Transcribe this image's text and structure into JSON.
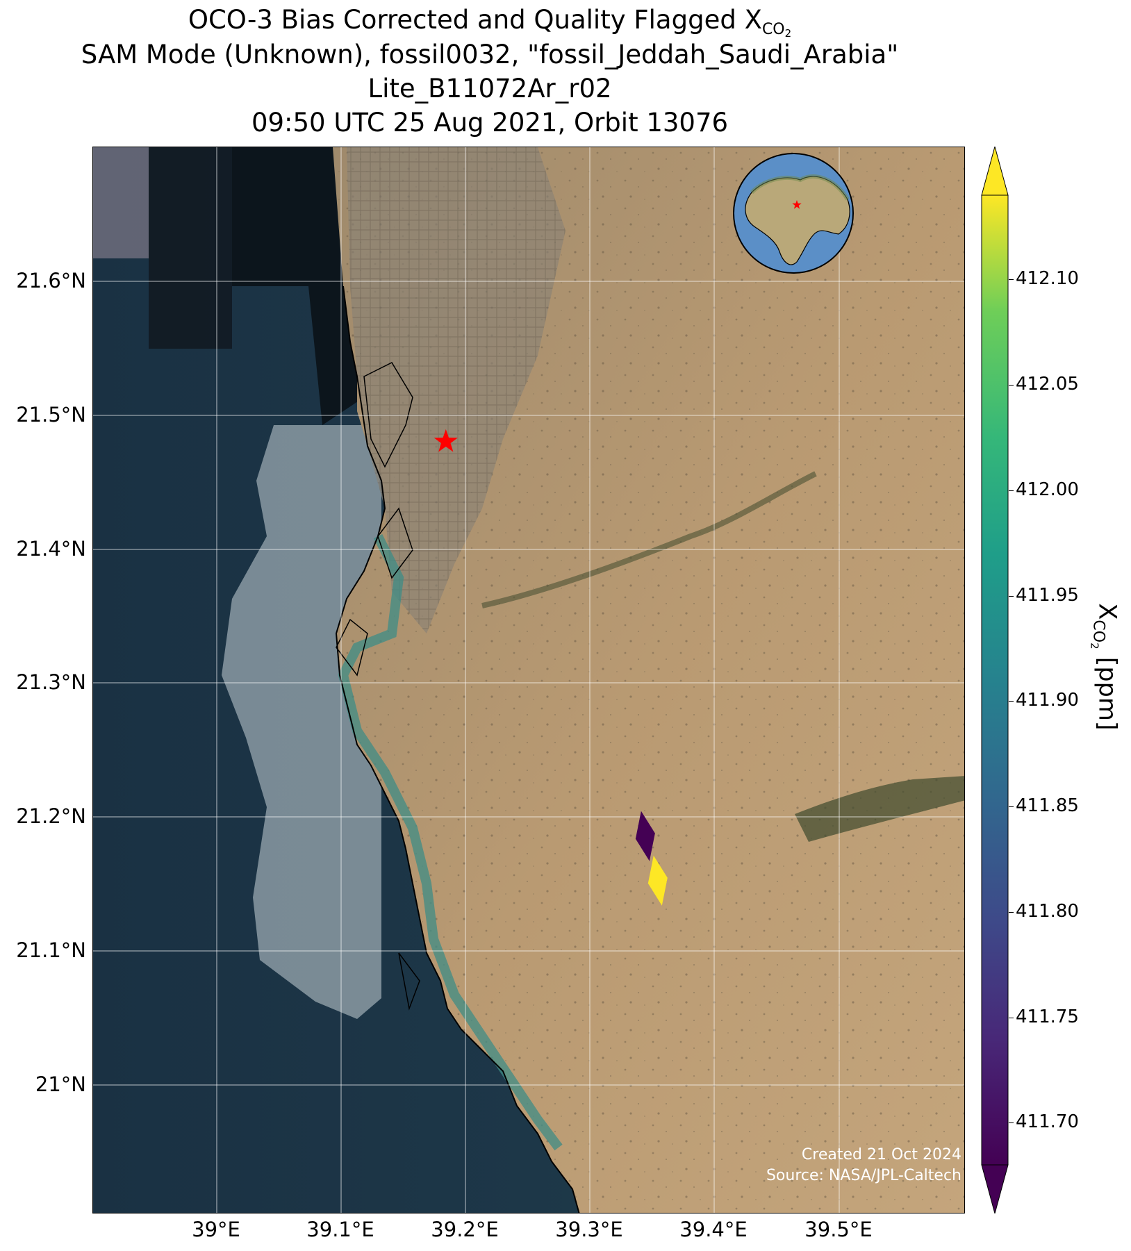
{
  "title": {
    "line1_prefix": "OCO-3 Bias Corrected and Quality Flagged X",
    "line1_sub": "CO",
    "line1_sub2": "2",
    "line2": "SAM Mode (Unknown), fossil0032, \"fossil_Jeddah_Saudi_Arabia\"",
    "line3": "Lite_B11072Ar_r02",
    "line4": "09:50 UTC 25 Aug 2021, Orbit 13076"
  },
  "axes": {
    "lat_labels": [
      "21.6°N",
      "21.5°N",
      "21.4°N",
      "21.3°N",
      "21.2°N",
      "21.1°N",
      "21°N"
    ],
    "lon_labels": [
      "39°E",
      "39.1°E",
      "39.2°E",
      "39.3°E",
      "39.4°E",
      "39.5°E"
    ],
    "lat_range": [
      20.91,
      21.7
    ],
    "lon_range": [
      38.9,
      39.6
    ],
    "grid": true
  },
  "colorbar": {
    "label_prefix": "X",
    "label_sub": "CO",
    "label_sub2": "2",
    "label_suffix": " [ppm]",
    "ticks": [
      "412.10",
      "412.05",
      "412.00",
      "411.95",
      "411.90",
      "411.85",
      "411.80",
      "411.75",
      "411.70"
    ],
    "range": [
      411.68,
      412.14
    ],
    "colormap": "viridis",
    "extend": "both"
  },
  "site_marker": {
    "lon": 39.183,
    "lat": 21.482,
    "color": "#ff0000",
    "shape": "star"
  },
  "soundings": [
    {
      "xco2": 411.7,
      "color": "#440154",
      "lon": 39.343,
      "lat": 21.19
    },
    {
      "xco2": 412.14,
      "color": "#fde725",
      "lon": 39.353,
      "lat": 21.157
    }
  ],
  "inset_globe": {
    "marker_color": "#ff0000",
    "shape": "star"
  },
  "credits": {
    "line1": "Created 21 Oct 2024",
    "line2": "Source: NASA/JPL-Caltech"
  }
}
